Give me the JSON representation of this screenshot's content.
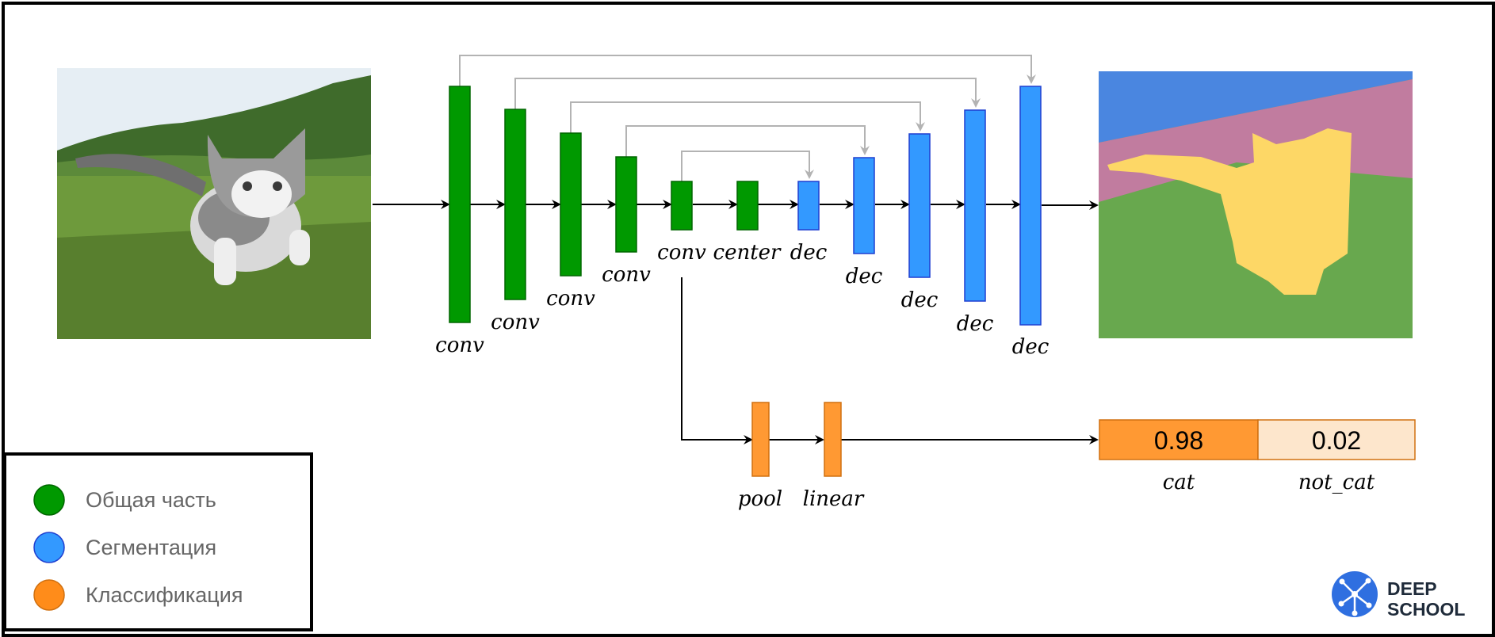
{
  "colors": {
    "shared": "#009900",
    "segmentation": "#3399ff",
    "classification": "#ff9933",
    "skip": "#b3b3b3",
    "sky": "#4a86e0",
    "hills": "#c17c9f",
    "grass": "#68a84e",
    "cat": "#fdd766",
    "brand": "#2f6fe0"
  },
  "encoder": {
    "labels": [
      "conv",
      "conv",
      "conv",
      "conv",
      "conv",
      "center"
    ]
  },
  "decoder": {
    "labels": [
      "dec",
      "dec",
      "dec",
      "dec",
      "dec"
    ]
  },
  "classifier": {
    "labels": [
      "pool",
      "linear"
    ]
  },
  "output": {
    "scores": [
      {
        "value": "0.98",
        "label": "cat"
      },
      {
        "value": "0.02",
        "label": "not_cat"
      }
    ]
  },
  "legend": {
    "items": [
      {
        "label": "Общая часть",
        "color_key": "shared"
      },
      {
        "label": "Сегментация",
        "color_key": "segmentation"
      },
      {
        "label": "Классификация",
        "color_key": "classification"
      }
    ]
  },
  "brand": {
    "line1": "DEEP",
    "line2": "SCHOOL",
    "icon": "network-node-icon"
  }
}
